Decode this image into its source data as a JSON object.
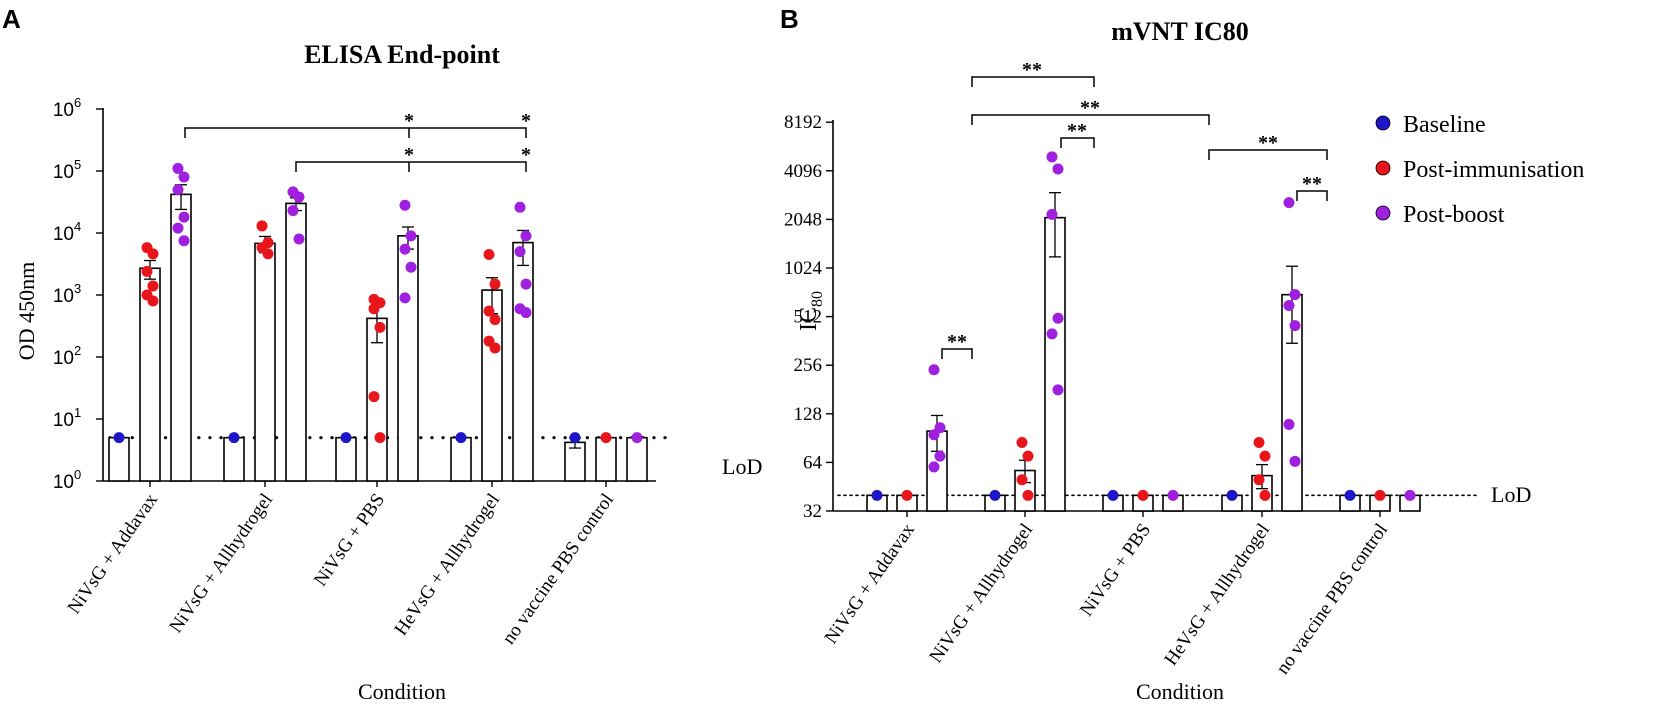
{
  "chart_data": [
    {
      "panel_label": "A",
      "type": "bar",
      "scale": "log10",
      "title": "ELISA End-point",
      "xlabel": "Condition",
      "ylabel": "OD 450nm",
      "ylim": [
        1,
        1000000
      ],
      "yticks": [
        {
          "value": 1,
          "base": "10",
          "exp": "0"
        },
        {
          "value": 10,
          "base": "10",
          "exp": "1"
        },
        {
          "value": 100,
          "base": "10",
          "exp": "2"
        },
        {
          "value": 1000,
          "base": "10",
          "exp": "3"
        },
        {
          "value": 10000,
          "base": "10",
          "exp": "4"
        },
        {
          "value": 100000,
          "base": "10",
          "exp": "5"
        },
        {
          "value": 1000000,
          "base": "10",
          "exp": "6"
        }
      ],
      "lod": {
        "value": 5,
        "label": "LoD"
      },
      "categories": [
        "NiVsG + Addavax",
        "NiVsG + Allhydrogel",
        "NiVsG + PBS",
        "HeVsG + Allhydrogel",
        "no vaccine PBS control"
      ],
      "series": [
        {
          "name": "Baseline",
          "color": "#1f16c8",
          "means": [
            5,
            5,
            5,
            5,
            4.2
          ],
          "errors": [
            0,
            0,
            0,
            0,
            0.8
          ],
          "points": [
            [
              5
            ],
            [
              5
            ],
            [
              5
            ],
            [
              5
            ],
            [
              5
            ]
          ]
        },
        {
          "name": "Post-immunisation",
          "color": "#e8161b",
          "means": [
            2700,
            6800,
            420,
            1200,
            5
          ],
          "errors": [
            900,
            2000,
            250,
            700,
            0
          ],
          "points": [
            [
              5800,
              4600,
              2400,
              1400,
              1000,
              800
            ],
            [
              13000,
              7000,
              5800,
              4600
            ],
            [
              850,
              750,
              600,
              300,
              23,
              5
            ],
            [
              4500,
              1500,
              550,
              400,
              180,
              140
            ],
            [
              5
            ]
          ]
        },
        {
          "name": "Post-boost",
          "color": "#a020e0",
          "means": [
            42000,
            30000,
            9000,
            7000,
            5
          ],
          "errors": [
            18000,
            7000,
            3500,
            4000,
            0
          ],
          "points": [
            [
              110000,
              80000,
              50000,
              18000,
              12000,
              7500
            ],
            [
              46000,
              38000,
              23000,
              8000
            ],
            [
              28000,
              9000,
              5500,
              2800,
              900
            ],
            [
              26000,
              9000,
              5000,
              1500,
              600,
              520
            ],
            [
              5
            ]
          ]
        }
      ],
      "significance": [
        {
          "from_category": 0,
          "to_category": [
            2,
            3
          ],
          "label": "*"
        },
        {
          "from_category": 1,
          "to_category": [
            2,
            3
          ],
          "label": "*"
        }
      ]
    },
    {
      "panel_label": "B",
      "type": "bar",
      "scale": "log2",
      "title": "mVNT IC80",
      "xlabel": "Condition",
      "ylabel_main": "IC",
      "ylabel_sub": "80",
      "ylim": [
        32,
        8192
      ],
      "yticks": [
        "32",
        "64",
        "128",
        "256",
        "512",
        "1024",
        "2048",
        "4096",
        "8192"
      ],
      "lod": {
        "value": 40,
        "label": "LoD"
      },
      "categories": [
        "NiVsG + Addavax",
        "NiVsG + Allhydrogel",
        "NiVsG + PBS",
        "HeVsG + Allhydrogel",
        "no vaccine PBS control"
      ],
      "series": [
        {
          "name": "Baseline",
          "color": "#1f16c8",
          "means": [
            40,
            40,
            40,
            40,
            40
          ],
          "errors": [
            0,
            0,
            0,
            0,
            0
          ],
          "points": [
            [
              40
            ],
            [
              40
            ],
            [
              40
            ],
            [
              40
            ],
            [
              40
            ]
          ]
        },
        {
          "name": "Post-immunisation",
          "color": "#e8161b",
          "means": [
            40,
            57,
            40,
            53,
            40
          ],
          "errors": [
            0,
            9,
            0,
            9,
            0
          ],
          "points": [
            [
              40
            ],
            [
              85,
              70,
              50,
              40
            ],
            [
              40
            ],
            [
              85,
              70,
              50,
              40
            ],
            [
              40
            ]
          ]
        },
        {
          "name": "Post-boost",
          "color": "#a020e0",
          "means": [
            100,
            2100,
            40,
            700,
            40
          ],
          "errors": [
            25,
            900,
            0,
            350,
            0
          ],
          "points": [
            [
              240,
              105,
              95,
              70,
              60
            ],
            [
              5000,
              4200,
              2200,
              500,
              400,
              180
            ],
            [
              40
            ],
            [
              2600,
              700,
              600,
              450,
              110,
              65
            ],
            [
              40
            ]
          ]
        }
      ],
      "significance": [
        {
          "bracket": "Addavax post-immunisation vs post-boost",
          "label": "**"
        },
        {
          "bracket": "Addavax post-boost vs Allhydrogel post-boost",
          "label": "**"
        },
        {
          "bracket": "Addavax post-boost vs PBS post-boost",
          "label": "**"
        },
        {
          "bracket": "Allhydrogel post-immunisation vs post-boost",
          "label": "**"
        },
        {
          "bracket": "PBS post-boost vs HeVsG post-boost",
          "label": "**"
        },
        {
          "bracket": "HeVsG post-immunisation vs post-boost",
          "label": "**"
        }
      ]
    }
  ],
  "legend": {
    "items": [
      {
        "label": "Baseline",
        "color": "#1f16c8"
      },
      {
        "label": "Post-immunisation",
        "color": "#e8161b"
      },
      {
        "label": "Post-boost",
        "color": "#a020e0"
      }
    ]
  }
}
